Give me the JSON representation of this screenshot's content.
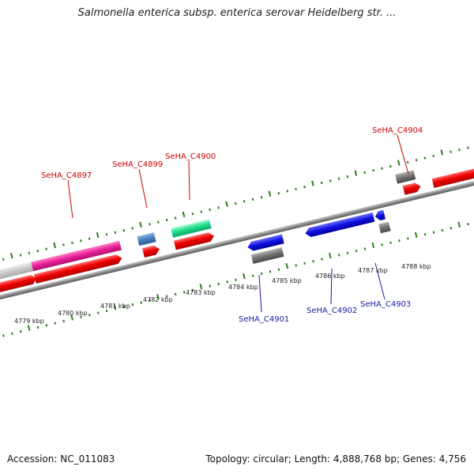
{
  "title": "Salmonella enterica subsp. enterica serovar Heidelberg str. ...",
  "footer": {
    "accession": "Accession: NC_011083",
    "summary": "Topology: circular; Length: 4,888,768 bp; Genes: 4,756"
  },
  "colors": {
    "cds_red": "#ee0000",
    "magenta": "#e8209a",
    "teal": "#1ed98a",
    "steelblue": "#4a80c0",
    "blue": "#1010e0",
    "gray_gene": "#707070",
    "light_gray": "#c8c8c8",
    "backbone": "#8a8a8a",
    "tick": "#2e7d1e",
    "label_red": "#cc0000",
    "label_blue": "#1a1aa6"
  },
  "kbp_labels": [
    "4779 kbp",
    "4780 kbp",
    "4781 kbp",
    "4782 kbp",
    "4783 kbp",
    "4784 kbp",
    "4785 kbp",
    "4786 kbp",
    "4787 kbp",
    "4788 kbp"
  ],
  "gene_labels": {
    "c4897": "SeHA_C4897",
    "c4899": "SeHA_C4899",
    "c4900": "SeHA_C4900",
    "c4904": "SeHA_C4904",
    "c4901": "SeHA_C4901",
    "c4902": "SeHA_C4902",
    "c4903": "SeHA_C4903"
  }
}
